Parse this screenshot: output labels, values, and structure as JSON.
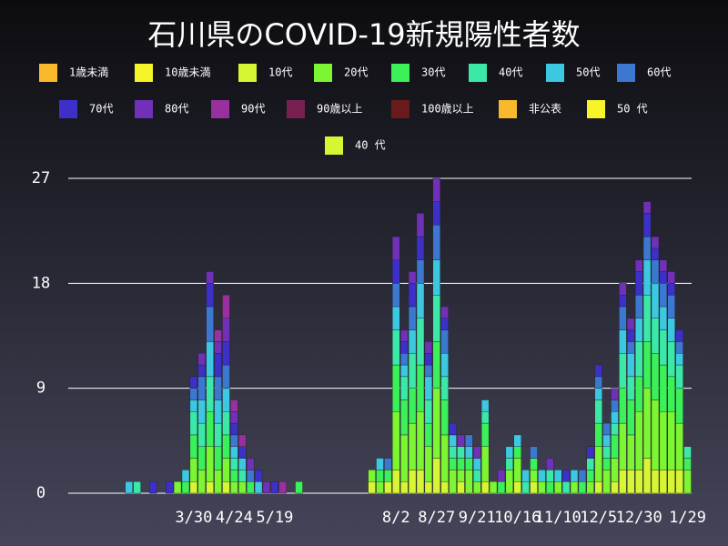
{
  "chart_data": {
    "type": "stacked-bar",
    "title": "石川県のCOVID-19新規陽性者数",
    "categories": [
      null,
      null,
      null,
      null,
      null,
      null,
      null,
      null,
      null,
      null,
      null,
      null,
      null,
      null,
      null,
      "3/30",
      null,
      null,
      null,
      null,
      "4/24",
      null,
      null,
      null,
      null,
      "5/19",
      null,
      null,
      null,
      null,
      null,
      null,
      null,
      null,
      null,
      null,
      null,
      null,
      null,
      null,
      "8/2",
      null,
      null,
      null,
      null,
      "8/27",
      null,
      null,
      null,
      null,
      "9/21",
      null,
      null,
      null,
      null,
      "10/16",
      null,
      null,
      null,
      null,
      "11/10",
      null,
      null,
      null,
      null,
      "12/5",
      null,
      null,
      null,
      null,
      "12/30",
      null,
      null,
      null,
      null,
      null,
      "1/29"
    ],
    "ylim": [
      0,
      27
    ],
    "yticks": [
      0,
      9,
      18,
      27
    ],
    "grid": true,
    "series": [
      {
        "name": "1歳未満",
        "color": "#f9b92c",
        "values": [
          0,
          0,
          0,
          0,
          0,
          0,
          0,
          0,
          0,
          0,
          0,
          0,
          0,
          0,
          0,
          0,
          0,
          0,
          0,
          0,
          0,
          0,
          0,
          0,
          0,
          0,
          0,
          0,
          0,
          0,
          0,
          0,
          0,
          0,
          0,
          0,
          0,
          0,
          0,
          0,
          0,
          0,
          0,
          0,
          0,
          0,
          0,
          0,
          0,
          0,
          0,
          0,
          0,
          0,
          0,
          0,
          0,
          0,
          0,
          0,
          0,
          0,
          0,
          0,
          0,
          0,
          0,
          0,
          0,
          0,
          0,
          0,
          0,
          0,
          0,
          0,
          0
        ]
      },
      {
        "name": "10歳未満",
        "color": "#f5f52a",
        "values": [
          0,
          0,
          0,
          0,
          0,
          0,
          0,
          0,
          0,
          0,
          0,
          0,
          0,
          0,
          0,
          0,
          0,
          0,
          0,
          0,
          0,
          0,
          0,
          0,
          0,
          0,
          0,
          0,
          0,
          0,
          0,
          0,
          0,
          0,
          0,
          0,
          0,
          0,
          0,
          0,
          0,
          0,
          0,
          0,
          0,
          0,
          0,
          0,
          0,
          0,
          0,
          0,
          0,
          0,
          0,
          0,
          0,
          0,
          0,
          0,
          0,
          0,
          0,
          0,
          0,
          0,
          0,
          0,
          0,
          0,
          0,
          0,
          0,
          0,
          0,
          0,
          0
        ]
      },
      {
        "name": "10代",
        "color": "#d6f532",
        "values": [
          0,
          0,
          0,
          0,
          0,
          0,
          0,
          0,
          0,
          0,
          0,
          0,
          0,
          0,
          0,
          1,
          0,
          1,
          0,
          1,
          0,
          0,
          0,
          0,
          0,
          0,
          0,
          0,
          0,
          0,
          0,
          0,
          0,
          0,
          0,
          0,
          0,
          1,
          0,
          1,
          2,
          1,
          2,
          2,
          1,
          3,
          1,
          0,
          1,
          0,
          0,
          1,
          0,
          0,
          0,
          1,
          0,
          1,
          0,
          0,
          0,
          0,
          0,
          0,
          0,
          1,
          0,
          1,
          2,
          2,
          2,
          3,
          2,
          2,
          2,
          2,
          0
        ]
      },
      {
        "name": "20代",
        "color": "#7cf532",
        "values": [
          0,
          0,
          0,
          0,
          0,
          0,
          0,
          0,
          0,
          0,
          0,
          0,
          0,
          1,
          0,
          2,
          2,
          3,
          2,
          2,
          1,
          1,
          0,
          0,
          0,
          0,
          0,
          0,
          0,
          0,
          0,
          0,
          0,
          0,
          0,
          0,
          0,
          1,
          1,
          0,
          5,
          4,
          4,
          5,
          3,
          6,
          4,
          2,
          1,
          2,
          1,
          3,
          1,
          0,
          2,
          2,
          0,
          1,
          1,
          0,
          1,
          0,
          1,
          0,
          1,
          3,
          2,
          2,
          4,
          3,
          5,
          6,
          6,
          5,
          5,
          4,
          2
        ]
      },
      {
        "name": "30代",
        "color": "#3cf05a",
        "values": [
          0,
          0,
          0,
          0,
          0,
          0,
          0,
          0,
          0,
          0,
          0,
          0,
          0,
          0,
          1,
          2,
          2,
          3,
          2,
          2,
          1,
          0,
          1,
          0,
          0,
          0,
          0,
          0,
          1,
          0,
          0,
          0,
          0,
          0,
          0,
          0,
          0,
          0,
          1,
          1,
          4,
          3,
          3,
          4,
          2,
          4,
          3,
          1,
          1,
          1,
          0,
          2,
          0,
          1,
          0,
          1,
          0,
          1,
          0,
          1,
          0,
          0,
          0,
          1,
          1,
          2,
          1,
          2,
          3,
          3,
          3,
          4,
          4,
          4,
          3,
          3,
          1
        ]
      },
      {
        "name": "40代",
        "color": "#3ce8a8",
        "values": [
          0,
          0,
          0,
          0,
          0,
          0,
          0,
          0,
          1,
          0,
          0,
          0,
          0,
          0,
          0,
          2,
          2,
          3,
          2,
          2,
          1,
          1,
          0,
          0,
          0,
          0,
          0,
          0,
          0,
          0,
          0,
          0,
          0,
          0,
          0,
          0,
          0,
          0,
          0,
          0,
          3,
          2,
          3,
          4,
          2,
          4,
          2,
          1,
          1,
          0,
          1,
          1,
          0,
          0,
          1,
          0,
          1,
          0,
          0,
          1,
          0,
          1,
          0,
          0,
          1,
          2,
          1,
          1,
          3,
          2,
          3,
          4,
          3,
          3,
          3,
          2,
          1
        ]
      },
      {
        "name": "50代",
        "color": "#3cc8e0",
        "values": [
          0,
          0,
          0,
          0,
          0,
          0,
          0,
          1,
          0,
          0,
          0,
          0,
          0,
          0,
          1,
          1,
          2,
          3,
          2,
          2,
          1,
          1,
          0,
          1,
          0,
          0,
          0,
          0,
          0,
          0,
          0,
          0,
          0,
          0,
          0,
          0,
          0,
          0,
          1,
          0,
          2,
          1,
          2,
          3,
          2,
          3,
          2,
          1,
          0,
          1,
          1,
          1,
          0,
          0,
          1,
          1,
          1,
          0,
          1,
          0,
          1,
          0,
          1,
          0,
          0,
          1,
          1,
          1,
          2,
          2,
          2,
          3,
          3,
          2,
          2,
          1,
          0
        ]
      },
      {
        "name": "60代",
        "color": "#3c78d0",
        "values": [
          0,
          0,
          0,
          0,
          0,
          0,
          0,
          0,
          0,
          0,
          0,
          0,
          0,
          0,
          0,
          1,
          2,
          3,
          2,
          2,
          1,
          0,
          1,
          0,
          0,
          0,
          0,
          0,
          0,
          0,
          0,
          0,
          0,
          0,
          0,
          0,
          0,
          0,
          0,
          1,
          2,
          1,
          2,
          2,
          1,
          3,
          2,
          0,
          0,
          1,
          0,
          0,
          0,
          0,
          0,
          0,
          0,
          1,
          0,
          0,
          0,
          0,
          0,
          1,
          0,
          1,
          1,
          1,
          2,
          1,
          2,
          2,
          2,
          2,
          2,
          1,
          0
        ]
      },
      {
        "name": "70代",
        "color": "#3c30c8",
        "values": [
          0,
          0,
          0,
          0,
          0,
          0,
          0,
          0,
          0,
          0,
          1,
          0,
          1,
          0,
          0,
          1,
          1,
          2,
          2,
          2,
          1,
          1,
          0,
          1,
          0,
          1,
          0,
          0,
          0,
          0,
          0,
          0,
          0,
          0,
          0,
          0,
          0,
          0,
          0,
          0,
          2,
          1,
          2,
          2,
          1,
          2,
          1,
          1,
          0,
          0,
          0,
          0,
          0,
          0,
          0,
          0,
          0,
          0,
          0,
          0,
          0,
          1,
          0,
          0,
          1,
          1,
          0,
          0,
          1,
          1,
          2,
          2,
          1,
          1,
          1,
          1,
          0
        ]
      },
      {
        "name": "80代",
        "color": "#7030b8",
        "values": [
          0,
          0,
          0,
          0,
          0,
          0,
          0,
          0,
          0,
          0,
          0,
          0,
          0,
          0,
          0,
          0,
          1,
          1,
          1,
          2,
          1,
          0,
          1,
          0,
          1,
          0,
          0,
          0,
          0,
          0,
          0,
          0,
          0,
          0,
          0,
          0,
          0,
          0,
          0,
          0,
          2,
          1,
          1,
          2,
          1,
          2,
          1,
          0,
          1,
          0,
          1,
          0,
          0,
          1,
          0,
          0,
          0,
          0,
          0,
          1,
          0,
          0,
          0,
          0,
          0,
          0,
          0,
          1,
          1,
          1,
          1,
          1,
          1,
          1,
          1,
          0,
          0
        ]
      },
      {
        "name": "90代",
        "color": "#9830a0",
        "values": [
          0,
          0,
          0,
          0,
          0,
          0,
          0,
          0,
          0,
          0,
          0,
          0,
          0,
          0,
          0,
          0,
          0,
          0,
          1,
          2,
          1,
          1,
          0,
          0,
          0,
          0,
          1,
          0,
          0,
          0,
          0,
          0,
          0,
          0,
          0,
          0,
          0,
          0,
          0,
          0,
          0,
          0,
          0,
          0,
          0,
          0,
          0,
          0,
          0,
          0,
          0,
          0,
          0,
          0,
          0,
          0,
          0,
          0,
          0,
          0,
          0,
          0,
          0,
          0,
          0,
          0,
          0,
          0,
          0,
          0,
          0,
          0,
          0,
          0,
          0,
          0,
          0
        ]
      },
      {
        "name": "90歳以上",
        "color": "#782050",
        "values": [
          0,
          0,
          0,
          0,
          0,
          0,
          0,
          0,
          0,
          0,
          0,
          0,
          0,
          0,
          0,
          0,
          0,
          0,
          0,
          0,
          0,
          0,
          0,
          0,
          0,
          0,
          0,
          0,
          0,
          0,
          0,
          0,
          0,
          0,
          0,
          0,
          0,
          0,
          0,
          0,
          0,
          0,
          0,
          0,
          0,
          0,
          0,
          0,
          0,
          0,
          0,
          0,
          0,
          0,
          0,
          0,
          0,
          0,
          0,
          0,
          0,
          0,
          0,
          0,
          0,
          0,
          0,
          0,
          0,
          0,
          0,
          0,
          0,
          0,
          0,
          0,
          0
        ]
      },
      {
        "name": "100歳以上",
        "color": "#6a1a1a",
        "values": [
          0,
          0,
          0,
          0,
          0,
          0,
          0,
          0,
          0,
          0,
          0,
          0,
          0,
          0,
          0,
          0,
          0,
          0,
          0,
          0,
          0,
          0,
          0,
          0,
          0,
          0,
          0,
          0,
          0,
          0,
          0,
          0,
          0,
          0,
          0,
          0,
          0,
          0,
          0,
          0,
          0,
          0,
          0,
          0,
          0,
          0,
          0,
          0,
          0,
          0,
          0,
          0,
          0,
          0,
          0,
          0,
          0,
          0,
          0,
          0,
          0,
          0,
          0,
          0,
          0,
          0,
          0,
          0,
          0,
          0,
          0,
          0,
          0,
          0,
          0,
          0,
          0
        ]
      },
      {
        "name": "非公表",
        "color": "#f9b92c",
        "values": [
          0,
          0,
          0,
          0,
          0,
          0,
          0,
          0,
          0,
          0,
          0,
          0,
          0,
          0,
          0,
          0,
          0,
          0,
          0,
          0,
          0,
          0,
          0,
          0,
          0,
          0,
          0,
          0,
          0,
          0,
          0,
          0,
          0,
          0,
          0,
          0,
          0,
          0,
          0,
          0,
          0,
          0,
          0,
          0,
          0,
          0,
          0,
          0,
          0,
          0,
          0,
          0,
          0,
          0,
          0,
          0,
          0,
          0,
          0,
          0,
          0,
          0,
          0,
          0,
          0,
          0,
          0,
          0,
          0,
          0,
          0,
          0,
          0,
          0,
          0,
          0,
          0
        ]
      },
      {
        "name": "50 代",
        "color": "#f5f52a",
        "values": [
          0,
          0,
          0,
          0,
          0,
          0,
          0,
          0,
          0,
          0,
          0,
          0,
          0,
          0,
          0,
          0,
          0,
          0,
          0,
          0,
          0,
          0,
          0,
          0,
          0,
          0,
          0,
          0,
          0,
          0,
          0,
          0,
          0,
          0,
          0,
          0,
          0,
          0,
          0,
          0,
          0,
          0,
          0,
          0,
          0,
          0,
          0,
          0,
          0,
          0,
          0,
          0,
          0,
          0,
          0,
          0,
          0,
          0,
          0,
          0,
          0,
          0,
          0,
          0,
          0,
          0,
          0,
          0,
          0,
          0,
          0,
          0,
          0,
          0,
          0,
          0,
          0
        ]
      },
      {
        "name": "40 代",
        "color": "#d6f532",
        "values": [
          0,
          0,
          0,
          0,
          0,
          0,
          0,
          0,
          0,
          0,
          0,
          0,
          0,
          0,
          0,
          0,
          0,
          0,
          0,
          0,
          0,
          0,
          0,
          0,
          0,
          0,
          0,
          0,
          0,
          0,
          0,
          0,
          0,
          0,
          0,
          0,
          0,
          0,
          0,
          0,
          0,
          0,
          0,
          0,
          0,
          0,
          0,
          0,
          0,
          0,
          0,
          0,
          0,
          0,
          0,
          0,
          0,
          0,
          0,
          0,
          0,
          0,
          0,
          0,
          0,
          0,
          0,
          0,
          0,
          0,
          0,
          0,
          0,
          0,
          0,
          0,
          0
        ]
      }
    ]
  }
}
